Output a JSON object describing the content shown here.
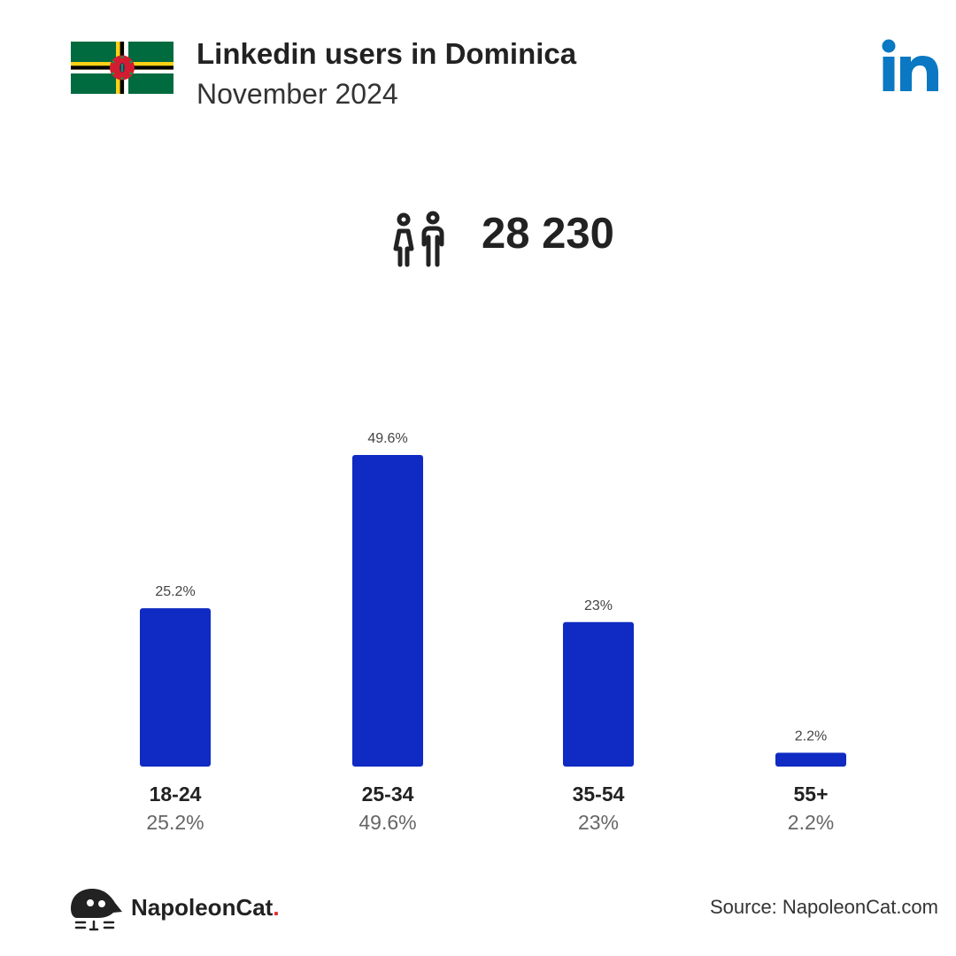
{
  "header": {
    "title": "Linkedin users in Dominica",
    "subtitle": "November 2024",
    "flag_icon": "dominica-flag-icon",
    "logo_icon": "linkedin-logo-icon"
  },
  "summary": {
    "total": "28 230",
    "icon": "people-icon"
  },
  "chart_data": {
    "type": "bar",
    "categories": [
      "18-24",
      "25-34",
      "35-54",
      "55+"
    ],
    "values": [
      25.2,
      49.6,
      23,
      2.2
    ],
    "value_labels": [
      "25.2%",
      "49.6%",
      "23%",
      "2.2%"
    ],
    "bar_color": "#0f2bc3",
    "ylim": [
      0,
      49.6
    ],
    "grid": false,
    "legend": "none"
  },
  "footer": {
    "brand_name": "NapoleonCat",
    "brand_dot": ".",
    "brand_dot_color": "#e8232d",
    "source": "Source: NapoleonCat.com"
  },
  "colors": {
    "linkedin_blue": "#0a78c2",
    "text_dark": "#222222"
  }
}
